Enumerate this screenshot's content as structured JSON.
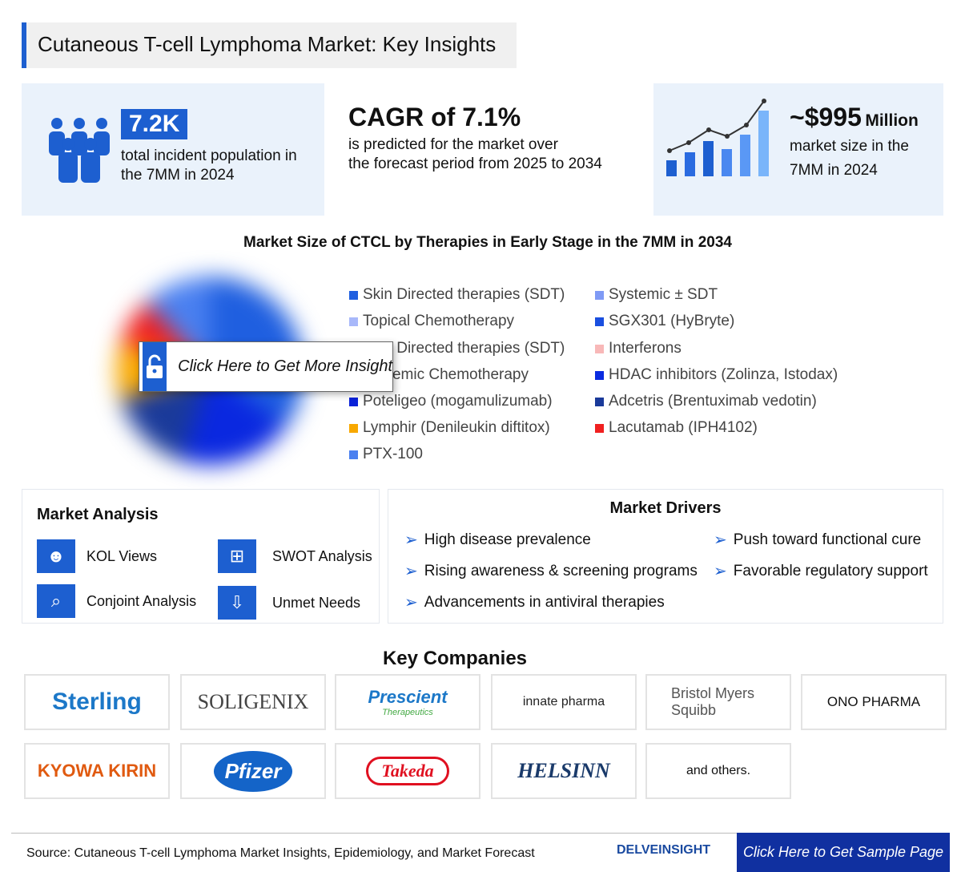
{
  "title": "Cutaneous T-cell Lymphoma Market: Key Insights",
  "stats": {
    "population": {
      "value": "7.2K",
      "text1": "total incident population in",
      "text2": "the 7MM in 2024",
      "icon": "people-group-icon"
    },
    "cagr": {
      "value": "CAGR of 7.1%",
      "text1": "is predicted for the market over",
      "text2": "the forecast period from 2025 to 2034"
    },
    "market": {
      "value": "~$995",
      "unit": "Million",
      "text1": "market size in the",
      "text2": "7MM in 2024",
      "icon": "bar-line-chart-icon"
    }
  },
  "chart_data": {
    "type": "pie",
    "title": "Market Size of CTCL by Therapies in Early Stage in the 7MM in 2034",
    "legend": [
      {
        "name": "Skin Directed therapies (SDT)",
        "color": "#1f5fe0"
      },
      {
        "name": "Systemic ± SDT",
        "color": "#7f9af5"
      },
      {
        "name": "Topical Chemotherapy",
        "color": "#a8b8fa"
      },
      {
        "name": "SGX301 (HyBryte)",
        "color": "#1a4fe0"
      },
      {
        "name": "Skin Directed therapies (SDT)",
        "color": "#2050d8"
      },
      {
        "name": "Interferons",
        "color": "#f8b8b8"
      },
      {
        "name": "Systemic Chemotherapy",
        "color": "#3060d0"
      },
      {
        "name": "HDAC inhibitors (Zolinza, Istodax)",
        "color": "#0a2be0"
      },
      {
        "name": "Poteligeo (mogamulizumab)",
        "color": "#0a22d8"
      },
      {
        "name": "Adcetris (Brentuximab vedotin)",
        "color": "#1a3a9a"
      },
      {
        "name": "Lymphir (Denileukin diftitox)",
        "color": "#f8a800"
      },
      {
        "name": "Lacutamab (IPH4102)",
        "color": "#f02020"
      },
      {
        "name": "PTX-100",
        "color": "#4a80f0"
      }
    ],
    "blurred": true
  },
  "overlay": {
    "label": "Click Here to Get More Insight",
    "icon": "unlock-icon"
  },
  "analysis": {
    "title": "Market Analysis",
    "items": [
      {
        "label": "KOL Views",
        "icon": "kol-person-icon"
      },
      {
        "label": "SWOT Analysis",
        "icon": "swot-grid-icon"
      },
      {
        "label": "Conjoint Analysis",
        "icon": "analysis-magnifier-icon"
      },
      {
        "label": "Unmet Needs",
        "icon": "hand-download-icon"
      }
    ]
  },
  "drivers": {
    "title": "Market Drivers",
    "items": [
      "High disease prevalence",
      "Push toward functional cure",
      "Rising awareness & screening programs",
      "Favorable regulatory support",
      "Advancements in antiviral therapies"
    ]
  },
  "companies": {
    "title": "Key Companies",
    "items": [
      "Sterling",
      "SOLIGENIX",
      "Prescient",
      "innate pharma",
      "Bristol Myers Squibb",
      "ONO PHARMA",
      "KYOWA KIRIN",
      "Pfizer",
      "Takeda",
      "HELSINN",
      "and others."
    ],
    "prescient_sub": "Therapeutics"
  },
  "footer": {
    "source": "Source: Cutaneous T-cell Lymphoma Market Insights, Epidemiology, and Market Forecast",
    "brand": "DELVEINSIGHT",
    "cta": "Click Here to Get Sample Page"
  },
  "colors": {
    "accent": "#1d5fd0",
    "cta_bg": "#1030a0"
  }
}
